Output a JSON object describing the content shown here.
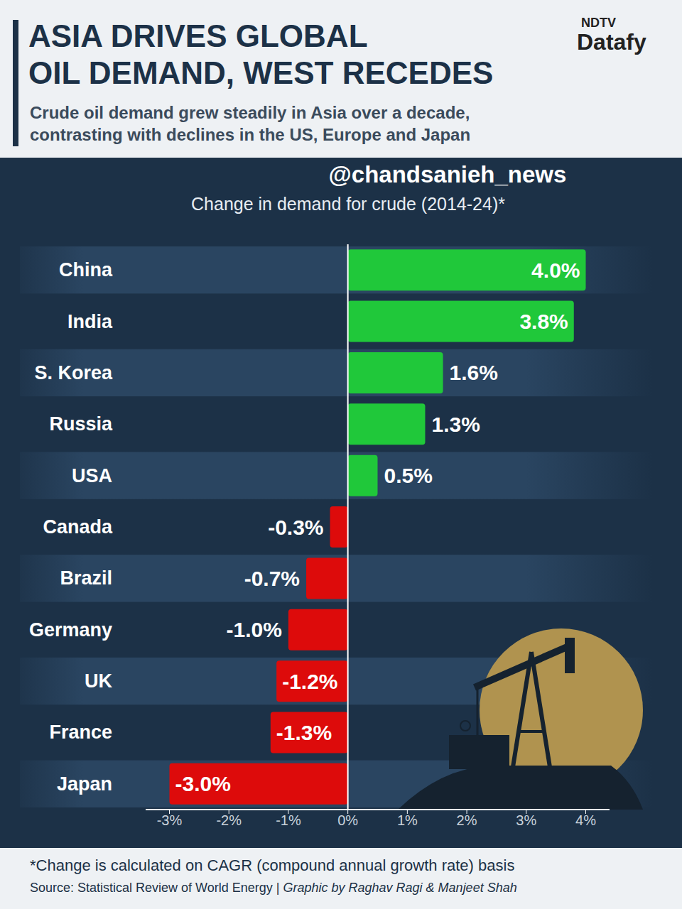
{
  "header": {
    "title": [
      "ASIA DRIVES GLOBAL",
      "OIL DEMAND, WEST RECEDES"
    ],
    "subtitle": [
      "Crude oil demand grew steadily in Asia over a decade,",
      "contrasting with declines in the US, Europe and Japan"
    ],
    "logo": [
      "NDTV",
      "Datafy"
    ]
  },
  "watermark": "@chandsanieh_news",
  "chart_data": {
    "type": "bar",
    "orientation": "horizontal",
    "title": "Change in demand for crude (2014-24)*",
    "categories": [
      "China",
      "India",
      "S. Korea",
      "Russia",
      "USA",
      "Canada",
      "Brazil",
      "Germany",
      "UK",
      "France",
      "Japan"
    ],
    "values": [
      4.0,
      3.8,
      1.6,
      1.3,
      0.5,
      -0.3,
      -0.7,
      -1.0,
      -1.2,
      -1.3,
      -3.0
    ],
    "value_labels": [
      "4.0%",
      "3.8%",
      "1.6%",
      "1.3%",
      "0.5%",
      "-0.3%",
      "-0.7%",
      "-1.0%",
      "-1.2%",
      "-1.3%",
      "-3.0%"
    ],
    "colors": [
      "#20c83a",
      "#20c83a",
      "#20c83a",
      "#20c83a",
      "#20c83a",
      "#dd0b0b",
      "#dd0b0b",
      "#dd0b0b",
      "#dd0b0b",
      "#dd0b0b",
      "#dd0b0b"
    ],
    "xlim": [
      -3.4,
      4.4
    ],
    "xticks": [
      {
        "value": -3,
        "label": "-3%"
      },
      {
        "value": -2,
        "label": "-2%"
      },
      {
        "value": -1,
        "label": "-1%"
      },
      {
        "value": 0,
        "label": "0%"
      },
      {
        "value": 1,
        "label": "1%"
      },
      {
        "value": 2,
        "label": "2%"
      },
      {
        "value": 3,
        "label": "3%"
      },
      {
        "value": 4,
        "label": "4%"
      }
    ],
    "grid": false,
    "data_labels": true
  },
  "footnote": "*Change is calculated on CAGR (compound annual growth rate) basis",
  "source": "Source: Statistical Review of World Energy |",
  "credit": "Graphic by Raghav Ragi & Manjeet Shah"
}
